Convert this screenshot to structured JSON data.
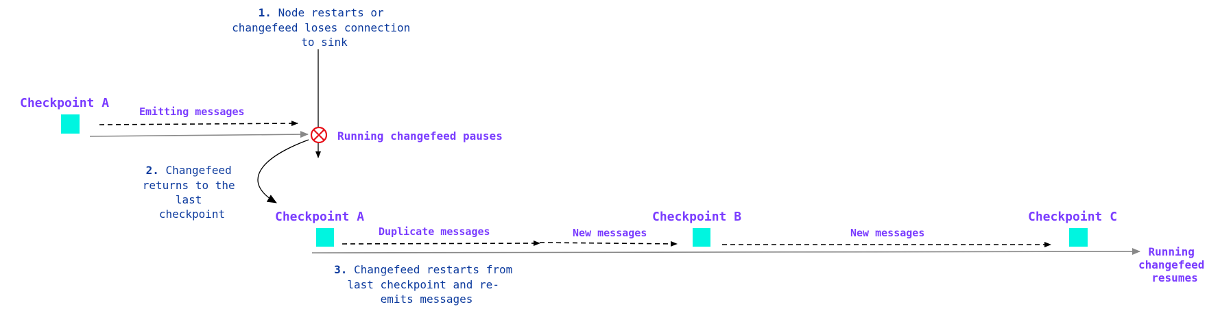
{
  "colors": {
    "label": "#7a3cff",
    "step_text": "#0d3b9e",
    "checkpoint": "#00f5e0",
    "error": "#e8111a",
    "timeline": "#888888",
    "arrow": "#000000"
  },
  "steps": [
    {
      "number": "1.",
      "lines": [
        "Node restarts or",
        "changefeed loses connection",
        "to sink"
      ]
    },
    {
      "number": "2.",
      "lines": [
        "Changefeed",
        "returns to the",
        "last",
        "checkpoint"
      ]
    },
    {
      "number": "3.",
      "lines": [
        "Changefeed restarts from",
        "last checkpoint and re-",
        "emits messages"
      ]
    }
  ],
  "checkpoints": {
    "a_first": "Checkpoint A",
    "a_second": "Checkpoint A",
    "b": "Checkpoint B",
    "c": "Checkpoint C"
  },
  "arrows": {
    "emitting": "Emitting messages",
    "duplicate": "Duplicate messages",
    "new_1": "New messages",
    "new_2": "New messages"
  },
  "status": {
    "pauses": "Running changefeed pauses",
    "resumes": [
      "Running",
      "changefeed",
      "resumes"
    ]
  },
  "icons": {
    "pause": "error-x-circle-icon"
  }
}
